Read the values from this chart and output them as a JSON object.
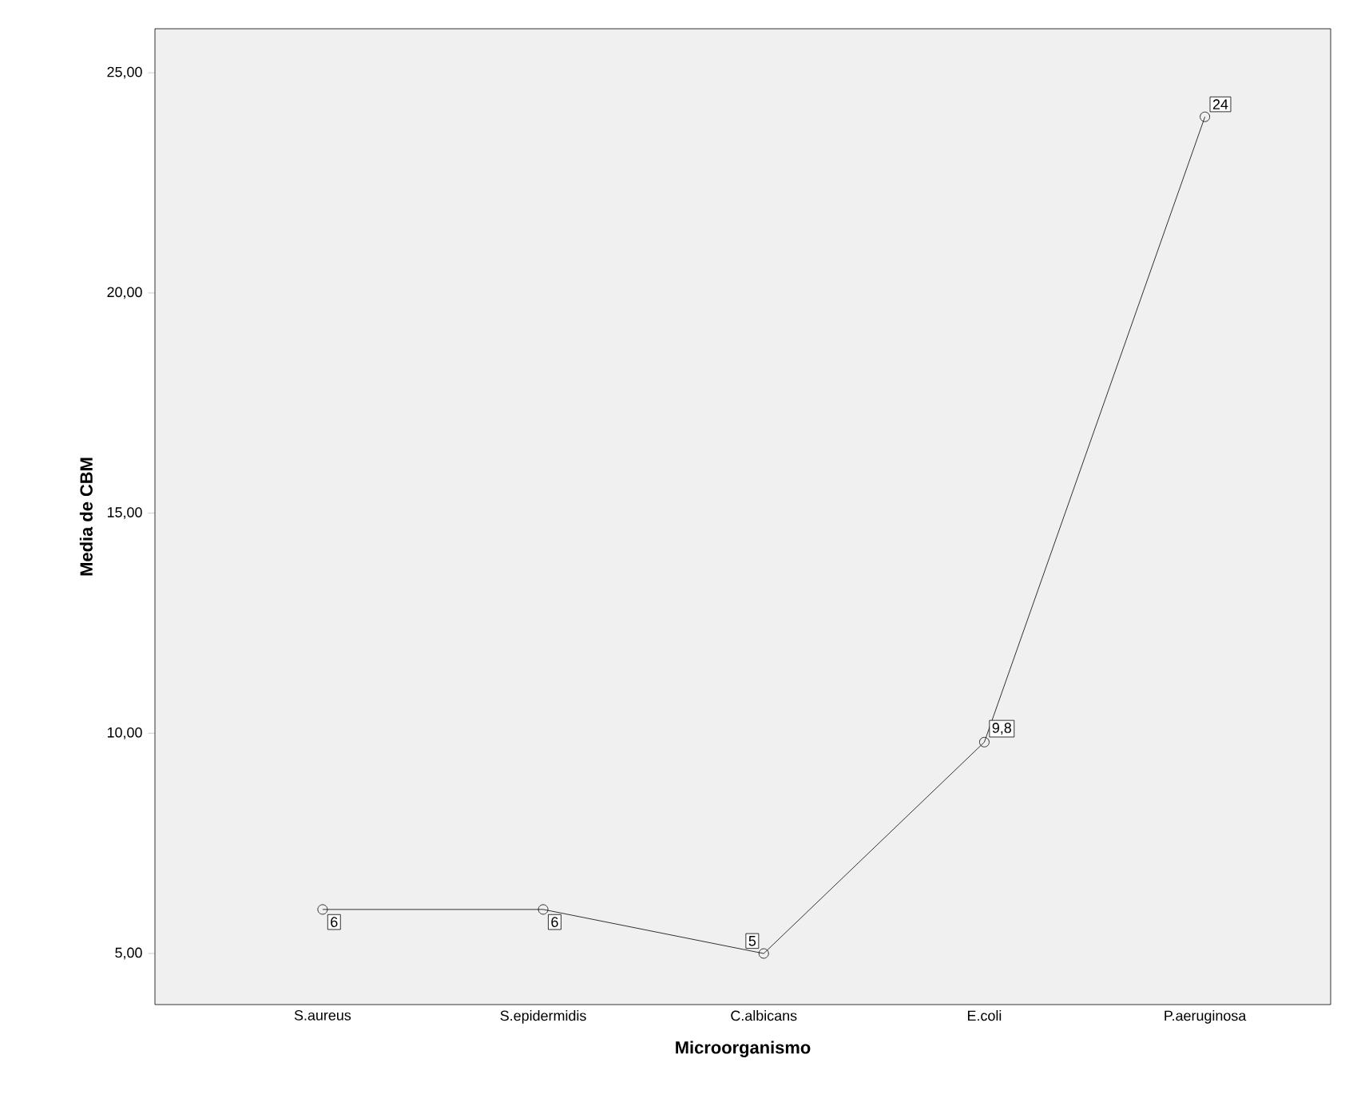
{
  "chart_data": {
    "type": "line",
    "xlabel": "Microorganismo",
    "ylabel": "Media de CBM",
    "categories": [
      "S.aureus",
      "S.epidermidis",
      "C.albicans",
      "E.coli",
      "P.aeruginosa"
    ],
    "values": [
      6,
      6,
      5,
      9.8,
      24
    ],
    "value_labels": [
      "6",
      "6",
      "5",
      "9,8",
      "24"
    ],
    "color": "#000000",
    "marker": "circle",
    "line_style": "solid",
    "ylim": [
      3.84,
      26.0
    ],
    "yticks": [
      {
        "value": 5,
        "label": "5,00"
      },
      {
        "value": 10,
        "label": "10,00"
      },
      {
        "value": 15,
        "label": "15,00"
      },
      {
        "value": 20,
        "label": "20,00"
      },
      {
        "value": 25,
        "label": "25,00"
      }
    ]
  }
}
